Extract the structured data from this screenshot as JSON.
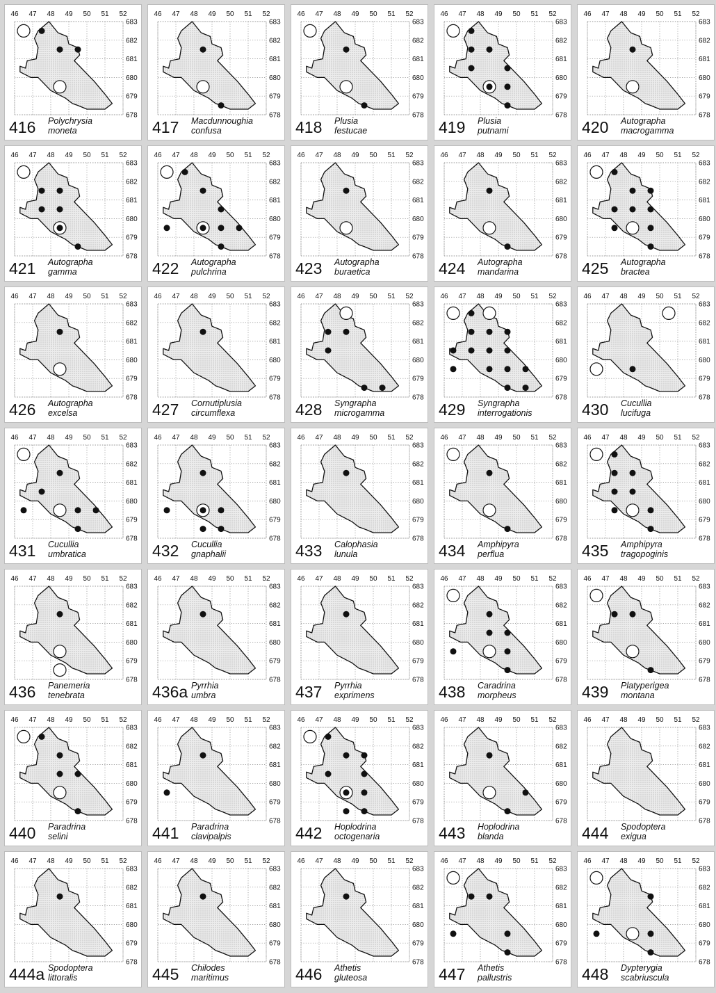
{
  "map_axes": {
    "x_ticks": [
      "46",
      "47",
      "48",
      "49",
      "50",
      "51",
      "52"
    ],
    "y_ticks": [
      "683",
      "682",
      "681",
      "680",
      "679",
      "678"
    ]
  },
  "legend": {
    "filled_circle": "record",
    "open_circle": "record (other)"
  },
  "colors": {
    "background": "#d6d6d6",
    "panel": "#ffffff",
    "land_fill": "#d9d9d9",
    "outline": "#111111",
    "grid": "#888888"
  },
  "species": [
    {
      "number": "416",
      "genus": "Polychrysia",
      "species": "moneta",
      "filled": [
        [
          47.5,
          682.5
        ],
        [
          48.5,
          681.5
        ],
        [
          49.5,
          681.5
        ]
      ],
      "open": [
        [
          46.5,
          682.5
        ],
        [
          48.5,
          679.5
        ]
      ]
    },
    {
      "number": "417",
      "genus": "Macdunnoughia",
      "species": "confusa",
      "filled": [
        [
          48.5,
          681.5
        ],
        [
          49.5,
          678.5
        ]
      ],
      "open": [
        [
          48.5,
          679.5
        ]
      ]
    },
    {
      "number": "418",
      "genus": "Plusia",
      "species": "festucae",
      "filled": [
        [
          48.5,
          681.5
        ],
        [
          49.5,
          678.5
        ]
      ],
      "open": [
        [
          46.5,
          682.5
        ],
        [
          48.5,
          679.5
        ]
      ]
    },
    {
      "number": "419",
      "genus": "Plusia",
      "species": "putnami",
      "filled": [
        [
          47.5,
          682.5
        ],
        [
          47.5,
          681.5
        ],
        [
          48.5,
          681.5
        ],
        [
          47.5,
          680.5
        ],
        [
          49.5,
          680.5
        ],
        [
          49.5,
          679.5
        ],
        [
          49.5,
          678.5
        ]
      ],
      "open": [
        [
          46.5,
          682.5
        ]
      ],
      "ringed": [
        [
          48.5,
          679.5
        ]
      ]
    },
    {
      "number": "420",
      "genus": "Autographa",
      "species": "macrogamma",
      "filled": [
        [
          48.5,
          681.5
        ]
      ],
      "open": [
        [
          48.5,
          679.5
        ]
      ]
    },
    {
      "number": "421",
      "genus": "Autographa",
      "species": "gamma",
      "filled": [
        [
          47.5,
          681.5
        ],
        [
          48.5,
          681.5
        ],
        [
          47.5,
          680.5
        ],
        [
          48.5,
          680.5
        ],
        [
          49.5,
          678.5
        ]
      ],
      "open": [
        [
          46.5,
          682.5
        ]
      ],
      "ringed": [
        [
          48.5,
          679.5
        ]
      ]
    },
    {
      "number": "422",
      "genus": "Autographa",
      "species": "pulchrina",
      "filled": [
        [
          47.5,
          682.5
        ],
        [
          48.5,
          681.5
        ],
        [
          49.5,
          680.5
        ],
        [
          46.5,
          679.5
        ],
        [
          49.5,
          679.5
        ],
        [
          50.5,
          679.5
        ],
        [
          49.5,
          678.5
        ]
      ],
      "open": [
        [
          46.5,
          682.5
        ]
      ],
      "ringed": [
        [
          48.5,
          679.5
        ]
      ]
    },
    {
      "number": "423",
      "genus": "Autographa",
      "species": "buraetica",
      "filled": [
        [
          48.5,
          681.5
        ]
      ],
      "open": [
        [
          48.5,
          679.5
        ]
      ]
    },
    {
      "number": "424",
      "genus": "Autographa",
      "species": "mandarina",
      "filled": [
        [
          48.5,
          681.5
        ],
        [
          49.5,
          678.5
        ]
      ],
      "open": [
        [
          48.5,
          679.5
        ]
      ]
    },
    {
      "number": "425",
      "genus": "Autographa",
      "species": "bractea",
      "filled": [
        [
          47.5,
          682.5
        ],
        [
          48.5,
          681.5
        ],
        [
          49.5,
          681.5
        ],
        [
          47.5,
          680.5
        ],
        [
          48.5,
          680.5
        ],
        [
          49.5,
          680.5
        ],
        [
          47.5,
          679.5
        ],
        [
          49.5,
          679.5
        ],
        [
          49.5,
          678.5
        ]
      ],
      "open": [
        [
          46.5,
          682.5
        ],
        [
          48.5,
          679.5
        ]
      ]
    },
    {
      "number": "426",
      "genus": "Autographa",
      "species": "excelsa",
      "filled": [
        [
          48.5,
          681.5
        ]
      ],
      "open": [
        [
          48.5,
          679.5
        ]
      ]
    },
    {
      "number": "427",
      "genus": "Cornutiplusia",
      "species": "circumflexa",
      "filled": [
        [
          48.5,
          681.5
        ]
      ],
      "open": []
    },
    {
      "number": "428",
      "genus": "Syngrapha",
      "species": "microgamma",
      "filled": [
        [
          47.5,
          681.5
        ],
        [
          48.5,
          681.5
        ],
        [
          47.5,
          680.5
        ],
        [
          49.5,
          678.5
        ],
        [
          50.5,
          678.5
        ]
      ],
      "open": [
        [
          48.5,
          682.5
        ]
      ]
    },
    {
      "number": "429",
      "genus": "Syngrapha",
      "species": "interrogationis",
      "filled": [
        [
          47.5,
          682.5
        ],
        [
          47.5,
          681.5
        ],
        [
          48.5,
          681.5
        ],
        [
          49.5,
          681.5
        ],
        [
          47.5,
          680.5
        ],
        [
          48.5,
          680.5
        ],
        [
          49.5,
          680.5
        ],
        [
          46.5,
          680.5
        ],
        [
          46.5,
          679.5
        ],
        [
          48.5,
          679.5
        ],
        [
          49.5,
          679.5
        ],
        [
          50.5,
          679.5
        ],
        [
          49.5,
          678.5
        ],
        [
          50.5,
          678.5
        ]
      ],
      "open": [
        [
          46.5,
          682.5
        ],
        [
          48.5,
          682.5
        ]
      ]
    },
    {
      "number": "430",
      "genus": "Cucullia",
      "species": "lucifuga",
      "filled": [
        [
          48.5,
          679.5
        ]
      ],
      "open": [
        [
          50.5,
          682.5
        ],
        [
          46.5,
          679.5
        ]
      ]
    },
    {
      "number": "431",
      "genus": "Cucullia",
      "species": "umbratica",
      "filled": [
        [
          48.5,
          681.5
        ],
        [
          47.5,
          680.5
        ],
        [
          46.5,
          679.5
        ],
        [
          49.5,
          679.5
        ],
        [
          50.5,
          679.5
        ],
        [
          49.5,
          678.5
        ]
      ],
      "open": [
        [
          46.5,
          682.5
        ],
        [
          48.5,
          679.5
        ]
      ]
    },
    {
      "number": "432",
      "genus": "Cucullia",
      "species": "gnaphalii",
      "filled": [
        [
          48.5,
          681.5
        ],
        [
          46.5,
          679.5
        ],
        [
          49.5,
          679.5
        ],
        [
          48.5,
          678.5
        ],
        [
          49.5,
          678.5
        ]
      ],
      "open": [],
      "ringed": [
        [
          48.5,
          679.5
        ]
      ]
    },
    {
      "number": "433",
      "genus": "Calophasia",
      "species": "lunula",
      "filled": [
        [
          48.5,
          681.5
        ]
      ],
      "open": []
    },
    {
      "number": "434",
      "genus": "Amphipyra",
      "species": "perflua",
      "filled": [
        [
          48.5,
          681.5
        ],
        [
          49.5,
          678.5
        ]
      ],
      "open": [
        [
          46.5,
          682.5
        ],
        [
          48.5,
          679.5
        ]
      ]
    },
    {
      "number": "435",
      "genus": "Amphipyra",
      "species": "tragopoginis",
      "filled": [
        [
          47.5,
          682.5
        ],
        [
          47.5,
          681.5
        ],
        [
          48.5,
          681.5
        ],
        [
          47.5,
          680.5
        ],
        [
          48.5,
          680.5
        ],
        [
          47.5,
          679.5
        ],
        [
          49.5,
          679.5
        ],
        [
          49.5,
          678.5
        ]
      ],
      "open": [
        [
          46.5,
          682.5
        ],
        [
          48.5,
          679.5
        ]
      ]
    },
    {
      "number": "436",
      "genus": "Panemeria",
      "species": "tenebrata",
      "filled": [
        [
          48.5,
          681.5
        ]
      ],
      "open": [
        [
          48.5,
          679.5
        ],
        [
          48.5,
          678.5
        ]
      ]
    },
    {
      "number": "436a",
      "genus": "Pyrrhia",
      "species": "umbra",
      "filled": [
        [
          48.5,
          681.5
        ]
      ],
      "open": []
    },
    {
      "number": "437",
      "genus": "Pyrrhia",
      "species": "exprimens",
      "filled": [
        [
          48.5,
          681.5
        ]
      ],
      "open": []
    },
    {
      "number": "438",
      "genus": "Caradrina",
      "species": "morpheus",
      "filled": [
        [
          48.5,
          681.5
        ],
        [
          48.5,
          680.5
        ],
        [
          49.5,
          680.5
        ],
        [
          46.5,
          679.5
        ],
        [
          49.5,
          679.5
        ],
        [
          49.5,
          678.5
        ]
      ],
      "open": [
        [
          46.5,
          682.5
        ],
        [
          48.5,
          679.5
        ]
      ]
    },
    {
      "number": "439",
      "genus": "Platyperigea",
      "species": "montana",
      "filled": [
        [
          47.5,
          681.5
        ],
        [
          48.5,
          681.5
        ],
        [
          49.5,
          678.5
        ]
      ],
      "open": [
        [
          46.5,
          682.5
        ],
        [
          48.5,
          679.5
        ]
      ]
    },
    {
      "number": "440",
      "genus": "Paradrina",
      "species": "selini",
      "filled": [
        [
          47.5,
          682.5
        ],
        [
          48.5,
          681.5
        ],
        [
          48.5,
          680.5
        ],
        [
          49.5,
          680.5
        ],
        [
          49.5,
          678.5
        ]
      ],
      "open": [
        [
          46.5,
          682.5
        ],
        [
          48.5,
          679.5
        ]
      ]
    },
    {
      "number": "441",
      "genus": "Paradrina",
      "species": "clavipalpis",
      "filled": [
        [
          48.5,
          681.5
        ],
        [
          46.5,
          679.5
        ]
      ],
      "open": []
    },
    {
      "number": "442",
      "genus": "Hoplodrina",
      "species": "octogenaria",
      "filled": [
        [
          47.5,
          682.5
        ],
        [
          48.5,
          681.5
        ],
        [
          49.5,
          681.5
        ],
        [
          47.5,
          680.5
        ],
        [
          49.5,
          680.5
        ],
        [
          49.5,
          679.5
        ],
        [
          49.5,
          678.5
        ],
        [
          48.5,
          678.5
        ]
      ],
      "open": [
        [
          46.5,
          682.5
        ]
      ],
      "ringed": [
        [
          48.5,
          679.5
        ]
      ]
    },
    {
      "number": "443",
      "genus": "Hoplodrina",
      "species": "blanda",
      "filled": [
        [
          48.5,
          681.5
        ],
        [
          50.5,
          679.5
        ],
        [
          49.5,
          678.5
        ]
      ],
      "open": [
        [
          48.5,
          679.5
        ]
      ]
    },
    {
      "number": "444",
      "genus": "Spodoptera",
      "species": "exigua",
      "filled": [],
      "open": []
    },
    {
      "number": "444a",
      "genus": "Spodoptera",
      "species": "littoralis",
      "filled": [
        [
          48.5,
          681.5
        ]
      ],
      "open": []
    },
    {
      "number": "445",
      "genus": "Chilodes",
      "species": "maritimus",
      "filled": [
        [
          48.5,
          681.5
        ]
      ],
      "open": []
    },
    {
      "number": "446",
      "genus": "Athetis",
      "species": "gluteosa",
      "filled": [
        [
          48.5,
          681.5
        ]
      ],
      "open": []
    },
    {
      "number": "447",
      "genus": "Athetis",
      "species": "pallustris",
      "filled": [
        [
          47.5,
          681.5
        ],
        [
          48.5,
          681.5
        ],
        [
          46.5,
          679.5
        ],
        [
          49.5,
          679.5
        ],
        [
          49.5,
          678.5
        ]
      ],
      "open": [
        [
          46.5,
          682.5
        ]
      ]
    },
    {
      "number": "448",
      "genus": "Dypterygia",
      "species": "scabriuscula",
      "filled": [
        [
          49.5,
          681.5
        ],
        [
          46.5,
          679.5
        ],
        [
          49.5,
          679.5
        ],
        [
          49.5,
          678.5
        ]
      ],
      "open": [
        [
          46.5,
          682.5
        ],
        [
          48.5,
          679.5
        ]
      ]
    }
  ]
}
